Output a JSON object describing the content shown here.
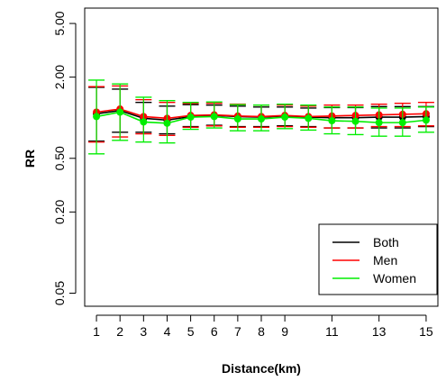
{
  "chart_data": {
    "type": "line",
    "title": "",
    "xlabel": "Distance(km)",
    "ylabel": "RR",
    "y_scale": "log",
    "ylim": [
      0.04,
      6.5
    ],
    "xlim": [
      0.5,
      15.5
    ],
    "x_ticks": [
      1,
      2,
      3,
      4,
      5,
      6,
      7,
      8,
      9,
      11,
      13,
      15
    ],
    "x_tick_labels": [
      "1",
      "2",
      "3",
      "4",
      "5",
      "6",
      "7",
      "8",
      "9",
      "11",
      "13",
      "15"
    ],
    "y_ticks": [
      0.05,
      0.2,
      0.5,
      2,
      5
    ],
    "y_tick_labels": [
      "0.05",
      "0.20",
      "0.50",
      "2.00",
      "5.00"
    ],
    "grid": false,
    "legend_position": "bottom-right",
    "x": [
      1,
      2,
      3,
      4,
      5,
      6,
      7,
      8,
      9,
      10,
      11,
      12,
      13,
      14,
      15
    ],
    "series": [
      {
        "name": "Both",
        "color": "#000000",
        "values": [
          1.07,
          1.13,
          0.99,
          0.96,
          1.02,
          1.04,
          1.02,
          1.01,
          1.03,
          1.01,
          1.0,
          1.0,
          1.01,
          1.01,
          1.02
        ],
        "lower": [
          0.67,
          0.78,
          0.78,
          0.76,
          0.86,
          0.88,
          0.86,
          0.86,
          0.87,
          0.86,
          0.84,
          0.84,
          0.84,
          0.84,
          0.86
        ],
        "upper": [
          1.68,
          1.63,
          1.3,
          1.22,
          1.25,
          1.24,
          1.22,
          1.2,
          1.2,
          1.18,
          1.19,
          1.19,
          1.21,
          1.21,
          1.21
        ]
      },
      {
        "name": "Men",
        "color": "#ff0000",
        "values": [
          1.1,
          1.16,
          1.02,
          0.99,
          1.04,
          1.05,
          1.03,
          1.02,
          1.04,
          1.02,
          1.03,
          1.04,
          1.05,
          1.06,
          1.07
        ],
        "lower": [
          0.66,
          0.72,
          0.76,
          0.74,
          0.85,
          0.87,
          0.85,
          0.85,
          0.86,
          0.85,
          0.84,
          0.84,
          0.86,
          0.86,
          0.87
        ],
        "upper": [
          1.7,
          1.72,
          1.36,
          1.3,
          1.28,
          1.28,
          1.26,
          1.24,
          1.24,
          1.22,
          1.24,
          1.24,
          1.26,
          1.28,
          1.3
        ]
      },
      {
        "name": "Women",
        "color": "#00ee00",
        "values": [
          1.02,
          1.1,
          0.93,
          0.91,
          1.01,
          1.02,
          0.98,
          0.98,
          1.01,
          0.99,
          0.95,
          0.94,
          0.92,
          0.92,
          0.96
        ],
        "lower": [
          0.54,
          0.68,
          0.66,
          0.65,
          0.82,
          0.84,
          0.8,
          0.8,
          0.83,
          0.81,
          0.76,
          0.75,
          0.73,
          0.73,
          0.78
        ],
        "upper": [
          1.9,
          1.78,
          1.42,
          1.34,
          1.3,
          1.31,
          1.25,
          1.24,
          1.26,
          1.24,
          1.2,
          1.2,
          1.18,
          1.18,
          1.2
        ]
      }
    ]
  }
}
